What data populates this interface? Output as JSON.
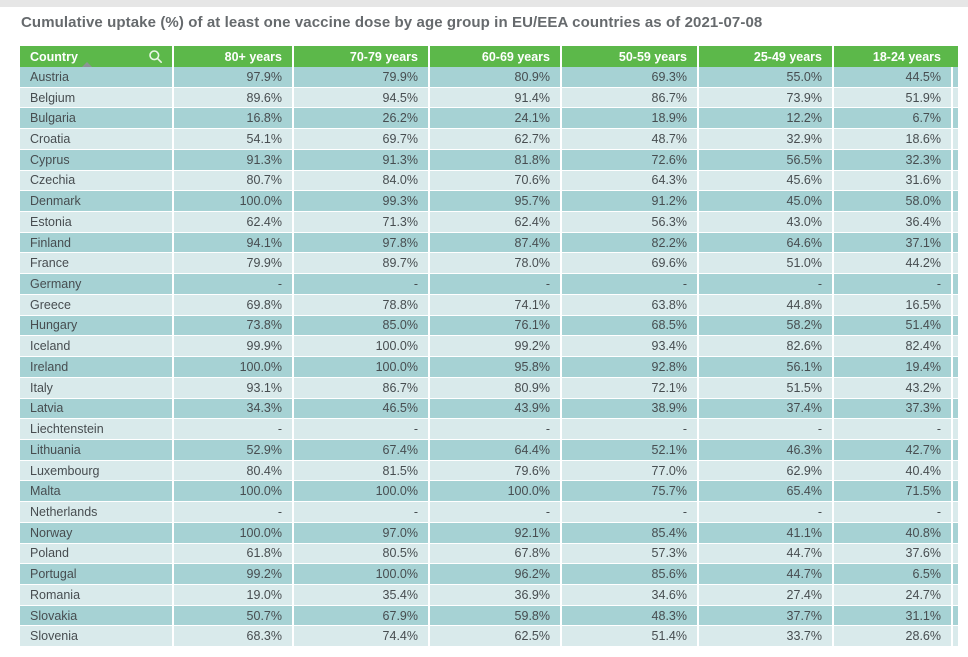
{
  "page_title": "Cumulative uptake (%) of at least one vaccine dose by age group in EU/EEA countries as of 2021-07-08",
  "colors": {
    "header_green": "#5cb84a",
    "row_dark_teal": "#a6d2d4",
    "row_light_teal": "#d9eaeb",
    "header_text": "#ffffff",
    "cell_text": "#474d50",
    "title_text": "#666a6d"
  },
  "icons": {
    "country_search": "search-icon",
    "country_sort": "sort-ascending-icon"
  },
  "chart_data": {
    "type": "table",
    "title": "Cumulative uptake (%) of at least one vaccine dose by age group in EU/EEA countries as of 2021-07-08",
    "unit": "%",
    "missing_value_marker": "-",
    "sorted_by": "Country ascending",
    "columns": [
      "Country",
      "80+ years",
      "70-79 years",
      "60-69 years",
      "50-59 years",
      "25-49 years",
      "18-24 years"
    ],
    "rows": [
      {
        "country": "Austria",
        "values": [
          "97.9%",
          "79.9%",
          "80.9%",
          "69.3%",
          "55.0%",
          "44.5%"
        ]
      },
      {
        "country": "Belgium",
        "values": [
          "89.6%",
          "94.5%",
          "91.4%",
          "86.7%",
          "73.9%",
          "51.9%"
        ]
      },
      {
        "country": "Bulgaria",
        "values": [
          "16.8%",
          "26.2%",
          "24.1%",
          "18.9%",
          "12.2%",
          "6.7%"
        ]
      },
      {
        "country": "Croatia",
        "values": [
          "54.1%",
          "69.7%",
          "62.7%",
          "48.7%",
          "32.9%",
          "18.6%"
        ]
      },
      {
        "country": "Cyprus",
        "values": [
          "91.3%",
          "91.3%",
          "81.8%",
          "72.6%",
          "56.5%",
          "32.3%"
        ]
      },
      {
        "country": "Czechia",
        "values": [
          "80.7%",
          "84.0%",
          "70.6%",
          "64.3%",
          "45.6%",
          "31.6%"
        ]
      },
      {
        "country": "Denmark",
        "values": [
          "100.0%",
          "99.3%",
          "95.7%",
          "91.2%",
          "45.0%",
          "58.0%"
        ]
      },
      {
        "country": "Estonia",
        "values": [
          "62.4%",
          "71.3%",
          "62.4%",
          "56.3%",
          "43.0%",
          "36.4%"
        ]
      },
      {
        "country": "Finland",
        "values": [
          "94.1%",
          "97.8%",
          "87.4%",
          "82.2%",
          "64.6%",
          "37.1%"
        ]
      },
      {
        "country": "France",
        "values": [
          "79.9%",
          "89.7%",
          "78.0%",
          "69.6%",
          "51.0%",
          "44.2%"
        ]
      },
      {
        "country": "Germany",
        "values": [
          "-",
          "-",
          "-",
          "-",
          "-",
          "-"
        ]
      },
      {
        "country": "Greece",
        "values": [
          "69.8%",
          "78.8%",
          "74.1%",
          "63.8%",
          "44.8%",
          "16.5%"
        ]
      },
      {
        "country": "Hungary",
        "values": [
          "73.8%",
          "85.0%",
          "76.1%",
          "68.5%",
          "58.2%",
          "51.4%"
        ]
      },
      {
        "country": "Iceland",
        "values": [
          "99.9%",
          "100.0%",
          "99.2%",
          "93.4%",
          "82.6%",
          "82.4%"
        ]
      },
      {
        "country": "Ireland",
        "values": [
          "100.0%",
          "100.0%",
          "95.8%",
          "92.8%",
          "56.1%",
          "19.4%"
        ]
      },
      {
        "country": "Italy",
        "values": [
          "93.1%",
          "86.7%",
          "80.9%",
          "72.1%",
          "51.5%",
          "43.2%"
        ]
      },
      {
        "country": "Latvia",
        "values": [
          "34.3%",
          "46.5%",
          "43.9%",
          "38.9%",
          "37.4%",
          "37.3%"
        ]
      },
      {
        "country": "Liechtenstein",
        "values": [
          "-",
          "-",
          "-",
          "-",
          "-",
          "-"
        ]
      },
      {
        "country": "Lithuania",
        "values": [
          "52.9%",
          "67.4%",
          "64.4%",
          "52.1%",
          "46.3%",
          "42.7%"
        ]
      },
      {
        "country": "Luxembourg",
        "values": [
          "80.4%",
          "81.5%",
          "79.6%",
          "77.0%",
          "62.9%",
          "40.4%"
        ]
      },
      {
        "country": "Malta",
        "values": [
          "100.0%",
          "100.0%",
          "100.0%",
          "75.7%",
          "65.4%",
          "71.5%"
        ]
      },
      {
        "country": "Netherlands",
        "values": [
          "-",
          "-",
          "-",
          "-",
          "-",
          "-"
        ]
      },
      {
        "country": "Norway",
        "values": [
          "100.0%",
          "97.0%",
          "92.1%",
          "85.4%",
          "41.1%",
          "40.8%"
        ]
      },
      {
        "country": "Poland",
        "values": [
          "61.8%",
          "80.5%",
          "67.8%",
          "57.3%",
          "44.7%",
          "37.6%"
        ]
      },
      {
        "country": "Portugal",
        "values": [
          "99.2%",
          "100.0%",
          "96.2%",
          "85.6%",
          "44.7%",
          "6.5%"
        ]
      },
      {
        "country": "Romania",
        "values": [
          "19.0%",
          "35.4%",
          "36.9%",
          "34.6%",
          "27.4%",
          "24.7%"
        ]
      },
      {
        "country": "Slovakia",
        "values": [
          "50.7%",
          "67.9%",
          "59.8%",
          "48.3%",
          "37.7%",
          "31.1%"
        ]
      },
      {
        "country": "Slovenia",
        "values": [
          "68.3%",
          "74.4%",
          "62.5%",
          "51.4%",
          "33.7%",
          "28.6%"
        ]
      }
    ]
  }
}
